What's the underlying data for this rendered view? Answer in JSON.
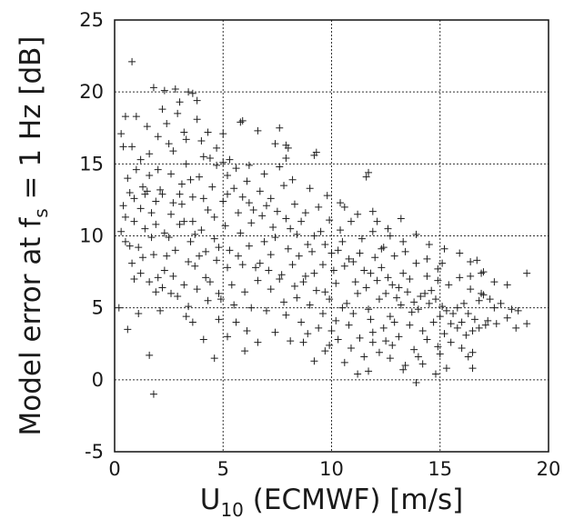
{
  "chart_data": {
    "type": "scatter",
    "marker": "plus",
    "marker_color": "#1f1f1f",
    "grid": true,
    "xlabel": {
      "main": "U",
      "sub": "10",
      "rest": " (ECMWF) [m/s]"
    },
    "ylabel": {
      "main": "Model error at f",
      "sub": "s",
      "rest": " = 1 Hz [dB]"
    },
    "xlim": [
      0,
      20
    ],
    "ylim": [
      -5,
      25
    ],
    "xticks": [
      "0",
      "5",
      "10",
      "15",
      "20"
    ],
    "yticks": [
      "-5",
      "0",
      "5",
      "10",
      "15",
      "20",
      "25"
    ],
    "points": [
      [
        0.8,
        22.1
      ],
      [
        1.8,
        -1.0
      ],
      [
        4.6,
        1.5
      ],
      [
        1.6,
        1.7
      ],
      [
        0.6,
        3.5
      ],
      [
        0.2,
        5.0
      ],
      [
        1.1,
        4.6
      ],
      [
        2.3,
        20.1
      ],
      [
        2.8,
        20.2
      ],
      [
        3.4,
        20.0
      ],
      [
        3.6,
        19.9
      ],
      [
        1.8,
        20.3
      ],
      [
        0.5,
        18.3
      ],
      [
        1.0,
        18.3
      ],
      [
        0.4,
        16.2
      ],
      [
        0.3,
        17.1
      ],
      [
        5.9,
        18.0
      ],
      [
        5.8,
        17.9
      ],
      [
        6.6,
        17.3
      ],
      [
        7.6,
        17.5
      ],
      [
        7.4,
        16.4
      ],
      [
        7.9,
        16.3
      ],
      [
        8.0,
        16.1
      ],
      [
        7.9,
        15.4
      ],
      [
        9.3,
        15.8
      ],
      [
        9.2,
        15.6
      ],
      [
        11.7,
        14.4
      ],
      [
        11.6,
        14.1
      ],
      [
        10.4,
        12.3
      ],
      [
        12.1,
        11.0
      ],
      [
        12.7,
        10.0
      ],
      [
        13.3,
        9.6
      ],
      [
        12.3,
        9.1
      ],
      [
        14.4,
        7.2
      ],
      [
        14.9,
        7.7
      ],
      [
        15.1,
        8.1
      ],
      [
        16.7,
        8.3
      ],
      [
        17.0,
        7.5
      ],
      [
        16.9,
        7.4
      ],
      [
        16.4,
        7.2
      ],
      [
        17.5,
        6.8
      ],
      [
        18.1,
        6.6
      ],
      [
        19.0,
        7.4
      ],
      [
        16.9,
        6.0
      ],
      [
        17.0,
        5.9
      ],
      [
        17.5,
        5.0
      ],
      [
        18.6,
        4.8
      ],
      [
        19.0,
        3.9
      ],
      [
        18.1,
        4.3
      ],
      [
        17.2,
        4.1
      ],
      [
        16.5,
        1.9
      ],
      [
        16.5,
        0.8
      ],
      [
        16.3,
        1.6
      ],
      [
        16.0,
        2.2
      ],
      [
        15.3,
        0.8
      ],
      [
        14.8,
        0.4
      ],
      [
        14.2,
        1.1
      ],
      [
        13.9,
        -0.2
      ],
      [
        13.3,
        0.7
      ],
      [
        12.7,
        1.5
      ],
      [
        12.2,
        1.9
      ],
      [
        11.7,
        0.6
      ],
      [
        11.2,
        0.4
      ],
      [
        10.6,
        1.2
      ],
      [
        9.9,
        2.4
      ],
      [
        9.2,
        1.3
      ],
      [
        8.7,
        2.6
      ],
      [
        8.1,
        2.7
      ],
      [
        7.4,
        3.3
      ],
      [
        6.6,
        2.6
      ],
      [
        6.1,
        3.4
      ],
      [
        5.6,
        4.0
      ],
      [
        4.8,
        4.2
      ],
      [
        4.1,
        2.8
      ],
      [
        3.3,
        4.4
      ],
      [
        2.1,
        4.8
      ],
      [
        1.9,
        6.1
      ],
      [
        0.9,
        7.0
      ],
      [
        1.2,
        7.4
      ],
      [
        2.3,
        7.6
      ],
      [
        0.3,
        10.3
      ],
      [
        0.5,
        11.3
      ],
      [
        0.7,
        9.3
      ],
      [
        0.9,
        12.6
      ],
      [
        1.3,
        13.4
      ],
      [
        1.0,
        14.6
      ],
      [
        1.6,
        15.7
      ],
      [
        2.0,
        16.9
      ],
      [
        2.4,
        17.8
      ],
      [
        2.9,
        18.5
      ],
      [
        3.2,
        17.2
      ],
      [
        3.8,
        18.1
      ],
      [
        4.0,
        16.6
      ],
      [
        4.4,
        15.4
      ],
      [
        4.7,
        14.9
      ],
      [
        5.2,
        14.2
      ],
      [
        5.5,
        13.3
      ],
      [
        5.0,
        12.4
      ],
      [
        4.3,
        11.8
      ],
      [
        3.6,
        12.7
      ],
      [
        3.1,
        13.6
      ],
      [
        2.6,
        14.3
      ],
      [
        2.2,
        12.9
      ],
      [
        1.7,
        11.6
      ],
      [
        1.4,
        10.5
      ],
      [
        1.1,
        9.2
      ],
      [
        1.8,
        8.7
      ],
      [
        2.5,
        9.9
      ],
      [
        3.0,
        10.8
      ],
      [
        3.5,
        9.6
      ],
      [
        4.0,
        10.4
      ],
      [
        4.6,
        9.8
      ],
      [
        5.1,
        10.7
      ],
      [
        5.7,
        11.6
      ],
      [
        6.2,
        12.3
      ],
      [
        6.8,
        11.4
      ],
      [
        7.3,
        10.6
      ],
      [
        7.9,
        11.2
      ],
      [
        8.4,
        10.1
      ],
      [
        8.9,
        9.4
      ],
      [
        9.5,
        10.3
      ],
      [
        10.0,
        8.8
      ],
      [
        10.5,
        9.6
      ],
      [
        11.0,
        8.2
      ],
      [
        11.5,
        7.6
      ],
      [
        12.0,
        8.5
      ],
      [
        12.6,
        7.1
      ],
      [
        13.1,
        6.4
      ],
      [
        13.6,
        7.0
      ],
      [
        14.1,
        5.8
      ],
      [
        14.6,
        6.2
      ],
      [
        15.1,
        5.1
      ],
      [
        15.6,
        4.6
      ],
      [
        16.1,
        5.3
      ],
      [
        16.6,
        4.2
      ],
      [
        15.8,
        3.6
      ],
      [
        15.2,
        3.2
      ],
      [
        14.7,
        4.0
      ],
      [
        14.2,
        3.4
      ],
      [
        13.7,
        4.7
      ],
      [
        13.2,
        5.2
      ],
      [
        12.7,
        4.4
      ],
      [
        12.2,
        5.6
      ],
      [
        11.7,
        4.9
      ],
      [
        11.2,
        6.0
      ],
      [
        10.7,
        5.3
      ],
      [
        10.2,
        6.7
      ],
      [
        9.7,
        6.1
      ],
      [
        9.2,
        7.4
      ],
      [
        8.7,
        6.8
      ],
      [
        8.2,
        8.0
      ],
      [
        7.7,
        7.3
      ],
      [
        7.2,
        8.7
      ],
      [
        6.7,
        8.1
      ],
      [
        6.2,
        9.3
      ],
      [
        5.7,
        8.6
      ],
      [
        5.2,
        7.8
      ],
      [
        4.7,
        8.3
      ],
      [
        4.2,
        7.1
      ],
      [
        3.7,
        7.9
      ],
      [
        3.2,
        6.6
      ],
      [
        2.7,
        7.2
      ],
      [
        2.2,
        6.4
      ],
      [
        1.7,
        9.9
      ],
      [
        1.2,
        11.9
      ],
      [
        0.7,
        13.0
      ],
      [
        0.4,
        12.1
      ],
      [
        0.6,
        14.0
      ],
      [
        1.5,
        13.1
      ],
      [
        2.0,
        14.6
      ],
      [
        2.7,
        15.9
      ],
      [
        3.3,
        15.0
      ],
      [
        3.9,
        14.1
      ],
      [
        4.5,
        13.4
      ],
      [
        5.0,
        15.1
      ],
      [
        5.6,
        14.7
      ],
      [
        6.1,
        13.8
      ],
      [
        6.7,
        13.1
      ],
      [
        7.2,
        12.6
      ],
      [
        7.8,
        13.5
      ],
      [
        8.3,
        12.2
      ],
      [
        8.8,
        11.6
      ],
      [
        9.4,
        12.0
      ],
      [
        9.9,
        11.1
      ],
      [
        10.4,
        10.4
      ],
      [
        10.9,
        11.0
      ],
      [
        11.4,
        9.8
      ],
      [
        11.9,
        10.3
      ],
      [
        12.4,
        9.2
      ],
      [
        12.9,
        8.6
      ],
      [
        13.4,
        8.9
      ],
      [
        13.9,
        8.1
      ],
      [
        14.4,
        8.4
      ],
      [
        14.9,
        6.9
      ],
      [
        15.4,
        6.6
      ],
      [
        15.9,
        7.1
      ],
      [
        16.4,
        6.3
      ],
      [
        16.8,
        5.5
      ],
      [
        17.3,
        5.6
      ],
      [
        17.8,
        5.3
      ],
      [
        18.3,
        4.9
      ],
      [
        16.2,
        3.1
      ],
      [
        15.5,
        2.6
      ],
      [
        14.9,
        2.3
      ],
      [
        14.4,
        2.8
      ],
      [
        13.8,
        2.1
      ],
      [
        13.1,
        3.0
      ],
      [
        12.5,
        2.7
      ],
      [
        11.9,
        3.3
      ],
      [
        11.3,
        2.9
      ],
      [
        10.8,
        3.8
      ],
      [
        10.2,
        4.1
      ],
      [
        9.6,
        4.6
      ],
      [
        9.0,
        5.2
      ],
      [
        8.4,
        5.7
      ],
      [
        7.8,
        5.4
      ],
      [
        7.2,
        6.3
      ],
      [
        6.6,
        6.9
      ],
      [
        6.0,
        6.1
      ],
      [
        5.4,
        6.6
      ],
      [
        4.8,
        6.0
      ],
      [
        4.3,
        5.5
      ],
      [
        3.8,
        6.3
      ],
      [
        3.4,
        5.1
      ],
      [
        2.9,
        5.8
      ],
      [
        2.4,
        8.6
      ],
      [
        1.9,
        10.8
      ],
      [
        2.6,
        11.5
      ],
      [
        3.1,
        12.2
      ],
      [
        3.6,
        11.0
      ],
      [
        4.1,
        12.6
      ],
      [
        4.6,
        11.3
      ],
      [
        5.2,
        12.9
      ],
      [
        5.8,
        10.2
      ],
      [
        6.3,
        10.9
      ],
      [
        6.9,
        9.6
      ],
      [
        7.4,
        9.9
      ],
      [
        8.0,
        9.1
      ],
      [
        8.5,
        8.6
      ],
      [
        9.1,
        8.9
      ],
      [
        9.6,
        8.0
      ],
      [
        10.1,
        7.6
      ],
      [
        10.6,
        7.9
      ],
      [
        11.1,
        6.8
      ],
      [
        11.6,
        6.4
      ],
      [
        12.1,
        6.9
      ],
      [
        12.5,
        6.0
      ],
      [
        13.0,
        5.7
      ],
      [
        13.5,
        6.1
      ],
      [
        14.0,
        4.9
      ],
      [
        14.5,
        5.3
      ],
      [
        15.0,
        4.4
      ],
      [
        15.5,
        3.9
      ],
      [
        16.0,
        4.0
      ],
      [
        16.5,
        3.4
      ],
      [
        17.1,
        3.8
      ],
      [
        11.5,
        1.6
      ],
      [
        10.9,
        2.2
      ],
      [
        10.3,
        2.8
      ],
      [
        9.4,
        3.6
      ],
      [
        8.6,
        4.0
      ],
      [
        7.9,
        4.5
      ],
      [
        7.0,
        4.8
      ],
      [
        6.3,
        5.0
      ],
      [
        5.5,
        5.2
      ],
      [
        4.9,
        5.6
      ],
      [
        4.4,
        6.8
      ],
      [
        3.9,
        8.6
      ],
      [
        3.4,
        8.2
      ],
      [
        2.8,
        9.0
      ],
      [
        2.3,
        10.2
      ],
      [
        1.9,
        12.4
      ],
      [
        1.4,
        12.9
      ],
      [
        0.9,
        11.0
      ],
      [
        0.5,
        9.6
      ],
      [
        0.8,
        8.1
      ],
      [
        1.3,
        8.5
      ],
      [
        1.6,
        6.8
      ],
      [
        2.0,
        7.1
      ],
      [
        2.6,
        6.0
      ],
      [
        3.0,
        12.9
      ],
      [
        3.5,
        13.9
      ],
      [
        4.1,
        15.5
      ],
      [
        4.7,
        16.1
      ],
      [
        5.3,
        15.3
      ],
      [
        5.9,
        12.7
      ],
      [
        6.4,
        11.8
      ],
      [
        7.0,
        12.1
      ],
      [
        7.5,
        11.7
      ],
      [
        8.1,
        10.5
      ],
      [
        8.6,
        11.0
      ],
      [
        9.2,
        10.0
      ],
      [
        9.7,
        9.4
      ],
      [
        10.3,
        9.0
      ],
      [
        10.8,
        8.4
      ],
      [
        11.3,
        8.8
      ],
      [
        11.8,
        7.4
      ],
      [
        12.3,
        7.8
      ],
      [
        12.8,
        6.6
      ],
      [
        13.3,
        7.4
      ],
      [
        13.8,
        5.4
      ],
      [
        14.3,
        6.0
      ],
      [
        14.8,
        5.6
      ],
      [
        15.3,
        4.8
      ],
      [
        15.8,
        5.0
      ],
      [
        16.3,
        4.6
      ],
      [
        16.8,
        3.6
      ],
      [
        17.6,
        3.9
      ],
      [
        18.5,
        3.6
      ],
      [
        13.6,
        3.8
      ],
      [
        12.9,
        4.0
      ],
      [
        12.4,
        3.6
      ],
      [
        11.8,
        4.2
      ],
      [
        11.0,
        4.6
      ],
      [
        10.5,
        5.0
      ],
      [
        9.9,
        5.6
      ],
      [
        9.3,
        6.2
      ],
      [
        8.8,
        7.2
      ],
      [
        8.3,
        6.5
      ],
      [
        7.6,
        7.0
      ],
      [
        7.1,
        7.6
      ],
      [
        6.5,
        7.8
      ],
      [
        5.9,
        8.0
      ],
      [
        5.3,
        9.0
      ],
      [
        4.8,
        9.2
      ],
      [
        4.2,
        8.9
      ],
      [
        3.7,
        10.1
      ],
      [
        3.2,
        11.0
      ],
      [
        2.7,
        12.3
      ],
      [
        2.1,
        13.2
      ],
      [
        1.6,
        14.2
      ],
      [
        1.2,
        15.3
      ],
      [
        0.8,
        16.2
      ],
      [
        1.5,
        17.6
      ],
      [
        2.2,
        18.8
      ],
      [
        3.0,
        19.3
      ],
      [
        3.8,
        19.4
      ],
      [
        2.5,
        16.4
      ],
      [
        3.3,
        16.7
      ],
      [
        4.3,
        17.2
      ],
      [
        5.0,
        17.1
      ],
      [
        6.2,
        14.9
      ],
      [
        6.9,
        14.3
      ],
      [
        7.6,
        14.8
      ],
      [
        8.2,
        13.9
      ],
      [
        9.0,
        13.3
      ],
      [
        9.8,
        12.8
      ],
      [
        10.6,
        12.0
      ],
      [
        11.2,
        11.5
      ],
      [
        11.9,
        11.7
      ],
      [
        12.6,
        10.5
      ],
      [
        13.2,
        11.2
      ],
      [
        13.9,
        10.1
      ],
      [
        14.5,
        9.4
      ],
      [
        15.2,
        9.1
      ],
      [
        15.9,
        8.8
      ],
      [
        16.4,
        8.2
      ],
      [
        6.0,
        2.0
      ],
      [
        5.2,
        3.0
      ],
      [
        3.6,
        4.0
      ],
      [
        8.9,
        3.2
      ],
      [
        10.0,
        3.4
      ],
      [
        12.8,
        2.4
      ],
      [
        14.0,
        1.6
      ],
      [
        15.0,
        1.8
      ],
      [
        13.4,
        1.0
      ],
      [
        11.9,
        2.6
      ],
      [
        9.7,
        2.0
      ]
    ]
  }
}
